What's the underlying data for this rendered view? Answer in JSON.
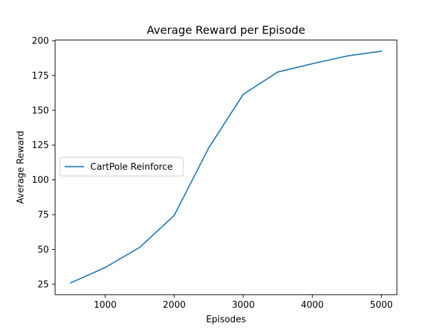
{
  "chart_data": {
    "type": "line",
    "title": "Average Reward per Episode",
    "xlabel": "Episodes",
    "ylabel": "Average Reward",
    "xlim": [
      275,
      5225
    ],
    "ylim": [
      17.5,
      200.5
    ],
    "xticks": [
      1000,
      2000,
      3000,
      4000,
      5000
    ],
    "yticks": [
      25,
      50,
      75,
      100,
      125,
      150,
      175,
      200
    ],
    "grid": false,
    "legend_position": "center-left",
    "series": [
      {
        "name": "CartPole Reinforce",
        "color": "#1f77b4",
        "x": [
          500,
          1000,
          1500,
          2000,
          2500,
          3000,
          3500,
          4000,
          4500,
          5000
        ],
        "y": [
          26,
          37,
          51.5,
          74.5,
          123,
          161.5,
          177.5,
          183.5,
          189,
          192.5
        ]
      }
    ]
  }
}
